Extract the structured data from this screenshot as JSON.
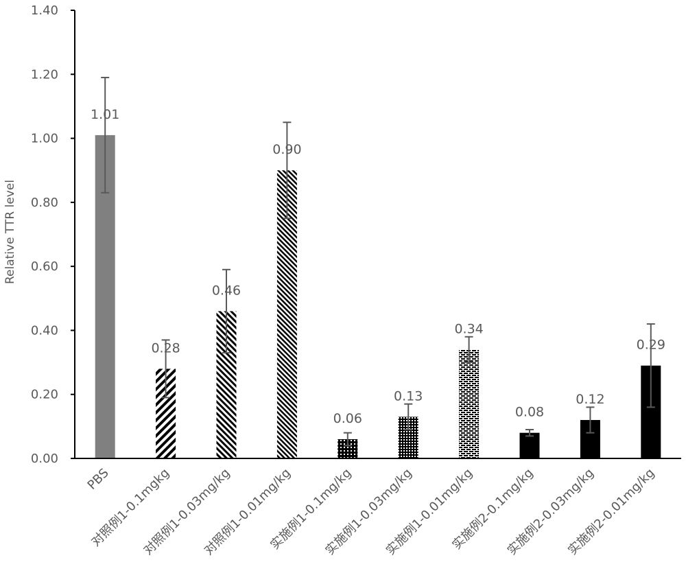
{
  "chart_data": {
    "type": "bar",
    "title": "",
    "xlabel": "",
    "ylabel": "Relative TTR level",
    "ylim": [
      0,
      1.4
    ],
    "yticks": [
      "0.00",
      "0.20",
      "0.40",
      "0.60",
      "0.80",
      "1.00",
      "1.20",
      "1.40"
    ],
    "grid": false,
    "categories": [
      "PBS",
      "对照例1-0.1mgkg",
      "对照例1-0.03mg/kg",
      "对照例1-0.01mg/kg",
      "实施例1-0.1mg/kg",
      "实施例1-0.03mg/kg",
      "实施例1-0.01mg/kg",
      "实施例2-0.1mg/kg",
      "实施例2-0.03mg/kg",
      "实施例2-0.01mg/kg"
    ],
    "values": [
      1.01,
      0.28,
      0.46,
      0.9,
      0.06,
      0.13,
      0.34,
      0.08,
      0.12,
      0.29
    ],
    "data_labels": [
      "1.01",
      "0.28",
      "0.46",
      "0.90",
      "0.06",
      "0.13",
      "0.34",
      "0.08",
      "0.12",
      "0.29"
    ],
    "error_upper": [
      1.19,
      0.37,
      0.59,
      1.05,
      0.08,
      0.17,
      0.38,
      0.09,
      0.16,
      0.42
    ],
    "error_lower": [
      0.83,
      0.19,
      0.33,
      0.75,
      0.04,
      0.09,
      0.3,
      0.07,
      0.08,
      0.16
    ],
    "patterns": [
      "solid-gray",
      "diag-coarse",
      "diag-medium",
      "diag-fine",
      "dots-sparse",
      "dots-dense",
      "brick",
      "solid-black",
      "solid-black",
      "solid-black"
    ],
    "colors": {
      "gray_bar": "#808080",
      "black": "#000000",
      "axis": "#000000",
      "text": "#595959",
      "error_bar": "#595959"
    }
  }
}
